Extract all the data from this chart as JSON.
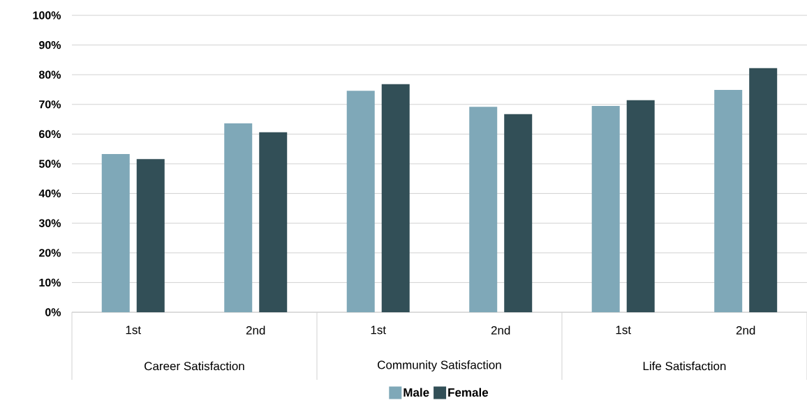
{
  "chart_data": {
    "type": "bar",
    "categories": [
      "1st",
      "2nd",
      "1st",
      "2nd",
      "1st",
      "2nd"
    ],
    "series": [
      {
        "name": "Male",
        "color": "#7fa8b8",
        "values": [
          53.3,
          63.6,
          74.6,
          69.2,
          69.5,
          74.9
        ]
      },
      {
        "name": "Female",
        "color": "#324f57",
        "values": [
          51.6,
          60.6,
          76.8,
          66.7,
          71.4,
          82.2
        ]
      }
    ],
    "annotations": [
      "Career Satisfaction",
      "Community Satisfaction",
      "Life Satisfaction"
    ],
    "ylim": [
      0,
      100
    ],
    "yticks": [
      {
        "value": 0,
        "label": "0%"
      },
      {
        "value": 10,
        "label": "10%"
      },
      {
        "value": 20,
        "label": "20%"
      },
      {
        "value": 30,
        "label": "30%"
      },
      {
        "value": 40,
        "label": "40%"
      },
      {
        "value": 50,
        "label": "50%"
      },
      {
        "value": 60,
        "label": "60%"
      },
      {
        "value": 70,
        "label": "70%"
      },
      {
        "value": 80,
        "label": "80%"
      },
      {
        "value": 90,
        "label": "90%"
      },
      {
        "value": 100,
        "label": "100%"
      }
    ],
    "grid": "y",
    "legend": "bottom"
  }
}
